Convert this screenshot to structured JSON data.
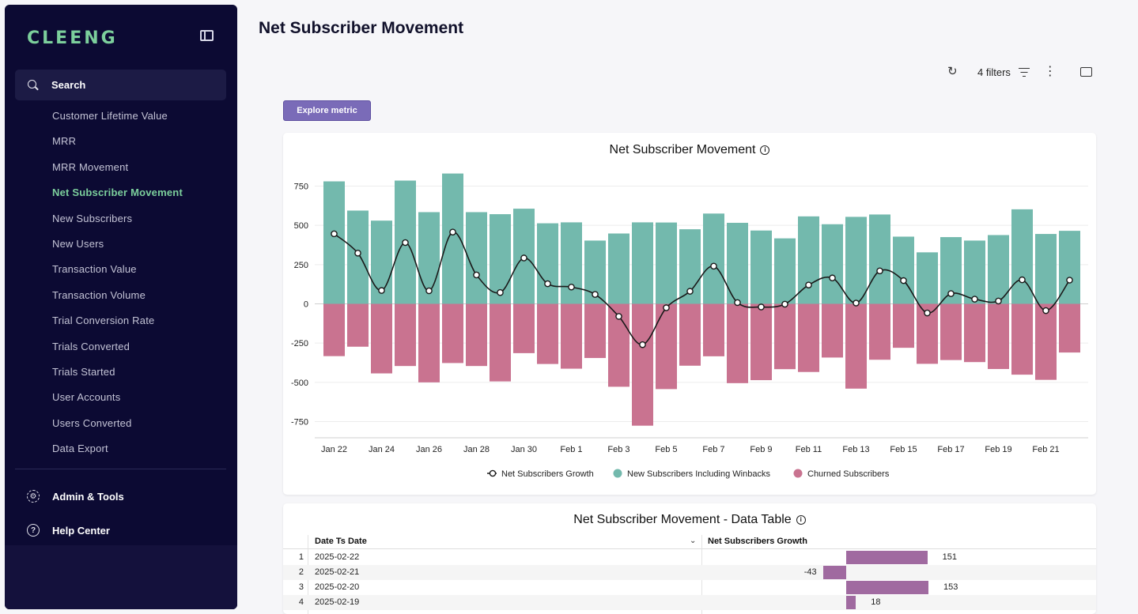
{
  "sidebar": {
    "logo": "CLEENG",
    "search_label": "Search",
    "items": [
      {
        "label": "Customer Lifetime Value",
        "active": false
      },
      {
        "label": "MRR",
        "active": false
      },
      {
        "label": "MRR Movement",
        "active": false
      },
      {
        "label": "Net Subscriber Movement",
        "active": true
      },
      {
        "label": "New Subscribers",
        "active": false
      },
      {
        "label": "New Users",
        "active": false
      },
      {
        "label": "Transaction Value",
        "active": false
      },
      {
        "label": "Transaction Volume",
        "active": false
      },
      {
        "label": "Trial Conversion Rate",
        "active": false
      },
      {
        "label": "Trials Converted",
        "active": false
      },
      {
        "label": "Trials Started",
        "active": false
      },
      {
        "label": "User Accounts",
        "active": false
      },
      {
        "label": "Users Converted",
        "active": false
      },
      {
        "label": "Data Export",
        "active": false
      }
    ],
    "admin_label": "Admin & Tools",
    "help_label": "Help Center"
  },
  "page": {
    "title": "Net Subscriber Movement",
    "filters_label": "4 filters",
    "explore_label": "Explore metric"
  },
  "chart_card": {
    "title": "Net Subscriber Movement"
  },
  "chart_data": {
    "type": "bar",
    "title": "Net Subscriber Movement",
    "xlabel": "",
    "ylabel": "",
    "ylim": [
      -800,
      850
    ],
    "yticks": [
      750,
      500,
      250,
      0,
      -250,
      -500,
      -750
    ],
    "categories": [
      "Jan 22",
      "Jan 23",
      "Jan 24",
      "Jan 25",
      "Jan 26",
      "Jan 27",
      "Jan 28",
      "Jan 29",
      "Jan 30",
      "Jan 31",
      "Feb 1",
      "Feb 2",
      "Feb 3",
      "Feb 4",
      "Feb 5",
      "Feb 6",
      "Feb 7",
      "Feb 8",
      "Feb 9",
      "Feb 10",
      "Feb 11",
      "Feb 12",
      "Feb 13",
      "Feb 14",
      "Feb 15",
      "Feb 16",
      "Feb 17",
      "Feb 18",
      "Feb 19",
      "Feb 20",
      "Feb 21",
      "Feb 22"
    ],
    "tick_labels": [
      "Jan 22",
      "Jan 24",
      "Jan 26",
      "Jan 28",
      "Jan 30",
      "Feb 1",
      "Feb 3",
      "Feb 5",
      "Feb 7",
      "Feb 9",
      "Feb 11",
      "Feb 13",
      "Feb 15",
      "Feb 17",
      "Feb 19",
      "Feb 21"
    ],
    "legend_position": "bottom",
    "series": [
      {
        "name": "Net Subscribers Growth",
        "type": "line",
        "color": "#1a1a1a",
        "values": [
          446,
          323,
          85,
          390,
          83,
          457,
          184,
          72,
          292,
          128,
          107,
          60,
          -80,
          -260,
          -25,
          80,
          240,
          8,
          -20,
          -2,
          120,
          165,
          5,
          210,
          148,
          -58,
          65,
          30,
          18,
          153,
          -43,
          151
        ]
      },
      {
        "name": "New Subscribers Including Winbacks",
        "type": "bar",
        "color": "#73b9ad",
        "values": [
          780,
          594,
          530,
          785,
          584,
          830,
          584,
          571,
          606,
          513,
          519,
          403,
          448,
          519,
          518,
          475,
          575,
          516,
          467,
          417,
          557,
          507,
          554,
          569,
          428,
          328,
          425,
          403,
          438,
          602,
          445,
          465
        ]
      },
      {
        "name": "Churned Subscribers",
        "type": "bar",
        "color": "#c97390",
        "values": [
          -333,
          -273,
          -443,
          -396,
          -500,
          -377,
          -396,
          -494,
          -314,
          -383,
          -413,
          -345,
          -528,
          -776,
          -543,
          -394,
          -334,
          -505,
          -486,
          -416,
          -434,
          -342,
          -540,
          -356,
          -280,
          -382,
          -358,
          -371,
          -415,
          -451,
          -484,
          -310
        ]
      }
    ]
  },
  "table_card": {
    "title": "Net Subscriber Movement - Data Table",
    "col_date": "Date Ts Date",
    "col_growth": "Net Subscribers Growth",
    "rows": [
      {
        "num": "1",
        "date": "2025-02-22",
        "value": 151
      },
      {
        "num": "2",
        "date": "2025-02-21",
        "value": -43
      },
      {
        "num": "3",
        "date": "2025-02-20",
        "value": 153
      },
      {
        "num": "4",
        "date": "2025-02-19",
        "value": 18
      }
    ]
  }
}
